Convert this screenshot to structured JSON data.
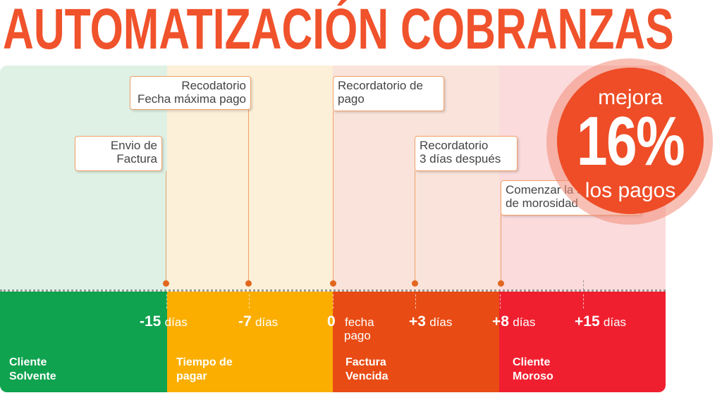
{
  "title": "AUTOMATIZACIÓN COBRANZAS",
  "zones": [
    {
      "label": "Cliente\nSolvente",
      "color": "#0fa24f",
      "bg": "#dff1e5"
    },
    {
      "label": "Tiempo de\npagar",
      "color": "#fbae00",
      "bg": "#fdf0d8"
    },
    {
      "label": "Factura\nVencida",
      "color": "#e84c14",
      "bg": "#f9e3da"
    },
    {
      "label": "Cliente\nMoroso",
      "color": "#f01f2f",
      "bg": "#fbdbdc"
    }
  ],
  "ticks": [
    {
      "num": "-15",
      "unit": "días"
    },
    {
      "num": "-7",
      "unit": "días"
    },
    {
      "num": "0",
      "unit": "fecha",
      "unit2": "pago"
    },
    {
      "num": "+3",
      "unit": "días"
    },
    {
      "num": "+8",
      "unit": "días"
    },
    {
      "num": "+15",
      "unit": "días"
    }
  ],
  "callouts": [
    {
      "text": "Envio de\nFactura"
    },
    {
      "text": "Recodatorio\nFecha máxima pago"
    },
    {
      "text": "Recordatorio de\npago"
    },
    {
      "text": "Recordatorio\n3 días después"
    },
    {
      "text": "Comenzar la se\nde morosidad"
    }
  ],
  "badge": {
    "line1": "mejora",
    "percent": "16%",
    "line2": "los pagos",
    "color": "#ee4d27"
  }
}
